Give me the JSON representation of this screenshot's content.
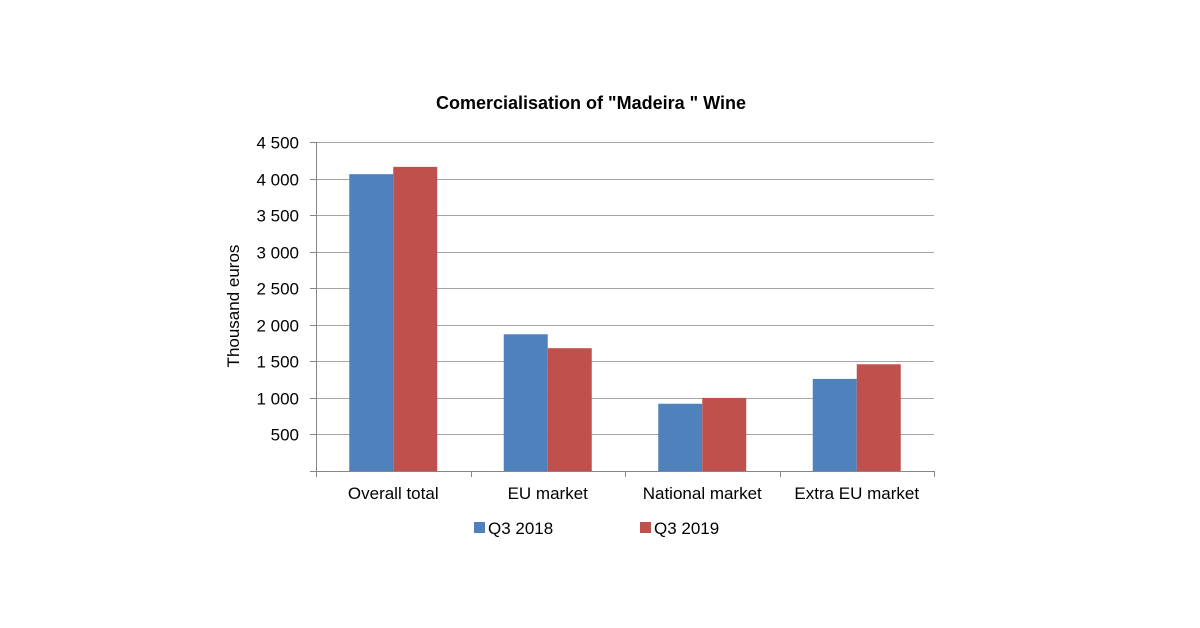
{
  "chart_data": {
    "type": "bar",
    "title": "Comercialisation of \"Madeira \" Wine",
    "ylabel": "Thousand euros",
    "xlabel": "",
    "ylim": [
      0,
      4500
    ],
    "yticks": [
      500,
      1000,
      1500,
      2000,
      2500,
      3000,
      3500,
      4000,
      4500
    ],
    "ytick_labels": [
      "500",
      "1 000",
      "1 500",
      "2 000",
      "2 500",
      "3 000",
      "3 500",
      "4 000",
      "4 500"
    ],
    "categories": [
      "Overall total",
      "EU market",
      "National market",
      "Extra EU market"
    ],
    "series": [
      {
        "name": "Q3 2018",
        "color": "#4f81bd",
        "values": [
          4060,
          1870,
          920,
          1260
        ]
      },
      {
        "name": "Q3 2019",
        "color": "#c0504d",
        "values": [
          4160,
          1680,
          1000,
          1460
        ]
      }
    ],
    "grid": true,
    "legend": "bottom"
  }
}
